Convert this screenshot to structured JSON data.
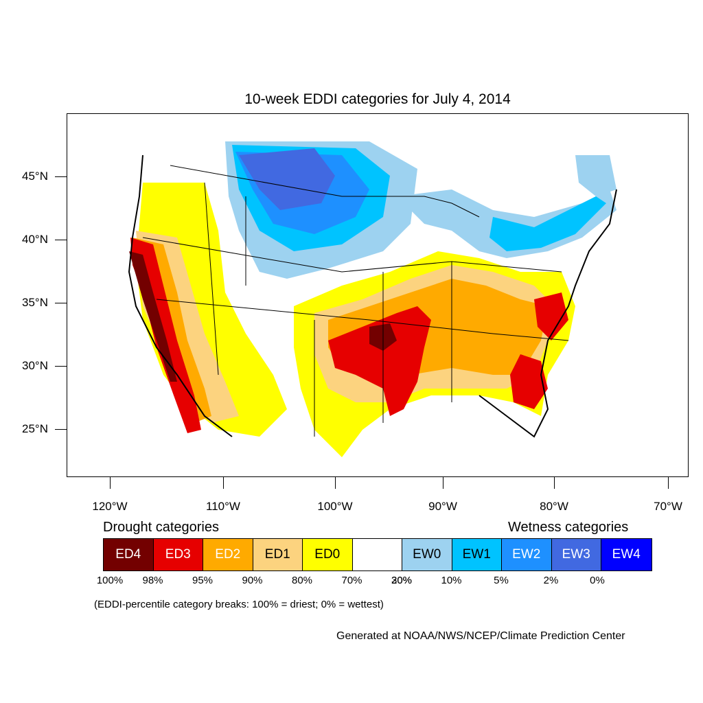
{
  "title": "10-week EDDI categories for July 4, 2014",
  "map": {
    "lat_labels": [
      "45°N",
      "40°N",
      "35°N",
      "30°N",
      "25°N"
    ],
    "lon_labels": [
      "120°W",
      "110°W",
      "100°W",
      "90°W",
      "80°W",
      "70°W"
    ]
  },
  "legend": {
    "drought_heading": "Drought categories",
    "wetness_heading": "Wetness categories",
    "categories": [
      {
        "label": "ED4",
        "color": "#730000"
      },
      {
        "label": "ED3",
        "color": "#e60000"
      },
      {
        "label": "ED2",
        "color": "#ffaa00"
      },
      {
        "label": "ED1",
        "color": "#fcd37f"
      },
      {
        "label": "ED0",
        "color": "#ffff00"
      },
      {
        "label": "",
        "color": "#ffffff"
      },
      {
        "label": "EW0",
        "color": "#9dd2f0"
      },
      {
        "label": "EW1",
        "color": "#00c3ff"
      },
      {
        "label": "EW2",
        "color": "#1e90ff"
      },
      {
        "label": "EW3",
        "color": "#4169e1"
      },
      {
        "label": "EW4",
        "color": "#0000ff"
      }
    ],
    "breaks": [
      "100%",
      "98%",
      "95%",
      "90%",
      "80%",
      "70%",
      "30%",
      "20%",
      "10%",
      "5%",
      "2%",
      "0%"
    ],
    "note": "(EDDI-percentile category breaks: 100% = driest; 0% = wettest)"
  },
  "credit": "Generated at NOAA/NWS/NCEP/Climate Prediction Center"
}
